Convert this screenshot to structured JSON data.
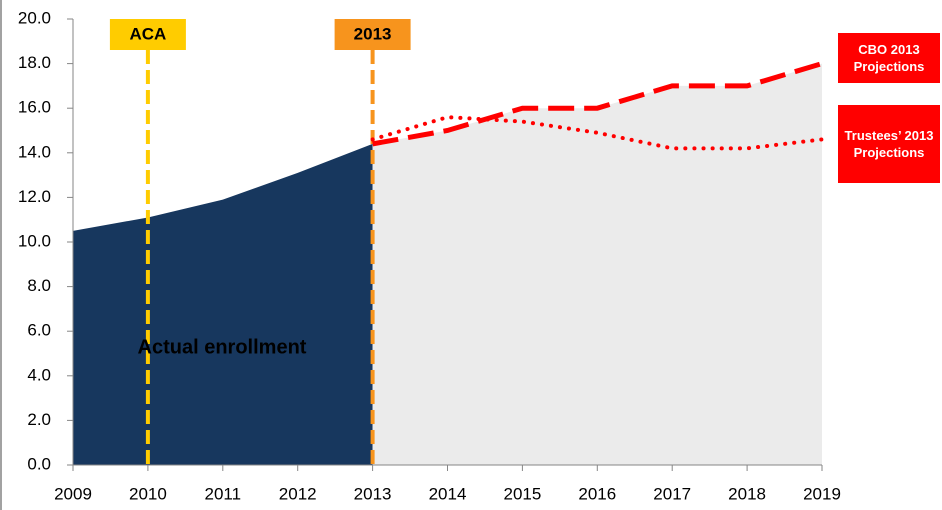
{
  "chart_data": {
    "type": "line",
    "x": [
      2009,
      2010,
      2011,
      2012,
      2013,
      2014,
      2015,
      2016,
      2017,
      2018,
      2019
    ],
    "series": [
      {
        "name": "Actual enrollment",
        "color": "#17375e",
        "style": "area",
        "values": [
          10.5,
          11.1,
          11.9,
          13.1,
          14.4,
          null,
          null,
          null,
          null,
          null,
          null
        ]
      },
      {
        "name": "CBO 2013 Projections",
        "color": "#ff0000",
        "fill": "#ebebeb",
        "style": "dashed",
        "values": [
          null,
          null,
          null,
          null,
          14.4,
          15.0,
          16.0,
          16.0,
          17.0,
          17.0,
          18.0
        ]
      },
      {
        "name": "Trustees’ 2013 Projections",
        "color": "#ff0000",
        "style": "dotted",
        "values": [
          null,
          null,
          null,
          null,
          14.6,
          15.6,
          15.4,
          14.9,
          14.2,
          14.2,
          14.6
        ]
      }
    ],
    "markers": [
      {
        "label": "ACA",
        "x": 2010,
        "color": "#ffcc00",
        "text_color": "#000000"
      },
      {
        "label": "2013",
        "x": 2013,
        "color": "#f7941d",
        "text_color": "#ffffff"
      }
    ],
    "xlim": [
      2009,
      2019
    ],
    "xticks": [
      2009,
      2010,
      2011,
      2012,
      2013,
      2014,
      2015,
      2016,
      2017,
      2018,
      2019
    ],
    "ylim": [
      0,
      20
    ],
    "yticks": [
      {
        "value": 0,
        "label": "0.0"
      },
      {
        "value": 2,
        "label": "2.0"
      },
      {
        "value": 4,
        "label": "4.0"
      },
      {
        "value": 6,
        "label": "6.0"
      },
      {
        "value": 8,
        "label": "8.0"
      },
      {
        "value": 10,
        "label": "10.0"
      },
      {
        "value": 12,
        "label": "12.0"
      },
      {
        "value": 14,
        "label": "14.0"
      },
      {
        "value": 16,
        "label": "16.0"
      },
      {
        "value": 18,
        "label": "18.0"
      },
      {
        "value": 20,
        "label": "20.0"
      }
    ]
  }
}
